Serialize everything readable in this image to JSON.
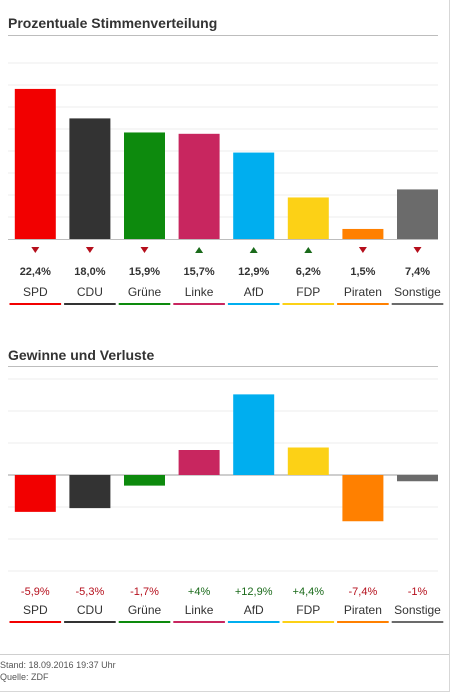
{
  "section1": {
    "title": "Prozentuale Stimmenverteilung"
  },
  "section2": {
    "title": "Gewinne und Verluste"
  },
  "colors": {
    "positive": "#1a6a1a",
    "negative": "#b50f1c",
    "trend_up": "#1a6a1a",
    "trend_down": "#b50f1c"
  },
  "chart_data": [
    {
      "type": "bar",
      "title": "Prozentuale Stimmenverteilung",
      "unit": "%",
      "categories": [
        "SPD",
        "CDU",
        "Grüne",
        "Linke",
        "AfD",
        "FDP",
        "Piraten",
        "Sonstige"
      ],
      "values": [
        22.4,
        18.0,
        15.9,
        15.7,
        12.9,
        6.2,
        1.5,
        7.4
      ],
      "value_labels": [
        "22,4%",
        "18,0%",
        "15,9%",
        "15,7%",
        "12,9%",
        "6,2%",
        "1,5%",
        "7,4%"
      ],
      "trend": [
        "down",
        "down",
        "down",
        "up",
        "up",
        "up",
        "down",
        "down"
      ],
      "colors": [
        "#f20000",
        "#333333",
        "#0d8a0d",
        "#c8265f",
        "#00aeef",
        "#fcd116",
        "#ff8000",
        "#6b6b6b"
      ],
      "ylim": [
        0,
        23
      ],
      "grid": true
    },
    {
      "type": "bar",
      "title": "Gewinne und Verluste",
      "categories": [
        "SPD",
        "CDU",
        "Grüne",
        "Linke",
        "AfD",
        "FDP",
        "Piraten",
        "Sonstige"
      ],
      "values": [
        -5.9,
        -5.3,
        -1.7,
        4,
        12.9,
        4.4,
        -7.4,
        -1
      ],
      "value_labels": [
        "-5,9%",
        "-5,3%",
        "-1,7%",
        "+4%",
        "+12,9%",
        "+4,4%",
        "-7,4%",
        "-1%"
      ],
      "colors": [
        "#f20000",
        "#333333",
        "#0d8a0d",
        "#c8265f",
        "#00aeef",
        "#fcd116",
        "#ff8000",
        "#6b6b6b"
      ],
      "ylim": [
        -12,
        12
      ],
      "grid": true
    }
  ],
  "footer": {
    "stand": "Stand: 18.09.2016 19:37 Uhr",
    "quelle": "Quelle: ZDF"
  }
}
